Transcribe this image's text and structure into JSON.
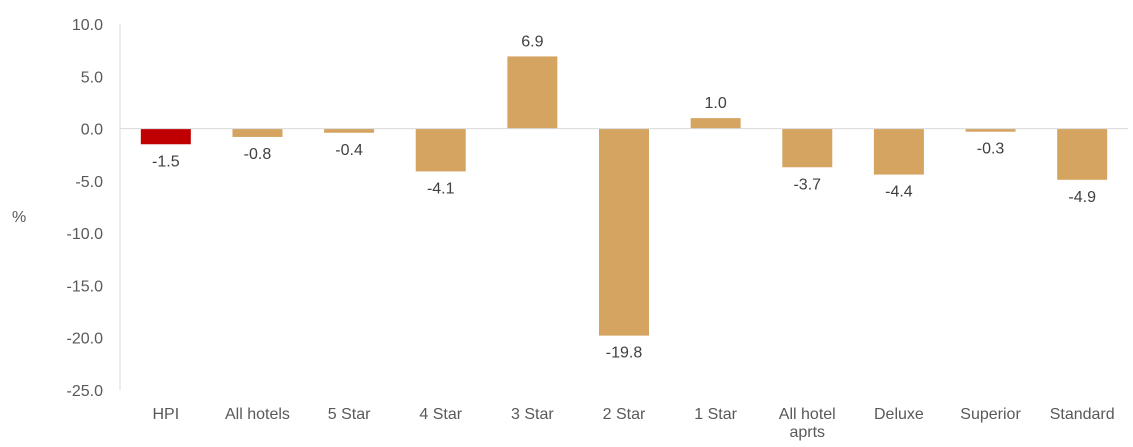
{
  "chart_data": {
    "type": "bar",
    "ylabel": "%",
    "ylim": [
      -25,
      10
    ],
    "yticks": [
      "10.0",
      "5.0",
      "0.0",
      "-5.0",
      "-10.0",
      "-15.0",
      "-20.0",
      "-25.0"
    ],
    "grid": false,
    "legend": "none",
    "categories": [
      "HPI",
      "All hotels",
      "5 Star",
      "4 Star",
      "3 Star",
      "2 Star",
      "1 Star",
      "All hotel aprts",
      "Deluxe",
      "Superior",
      "Standard"
    ],
    "values": [
      -1.5,
      -0.8,
      -0.4,
      -4.1,
      6.9,
      -19.8,
      1.0,
      -3.7,
      -4.4,
      -0.3,
      -4.9
    ],
    "data_labels": [
      "-1.5",
      "-0.8",
      "-0.4",
      "-4.1",
      "6.9",
      "-19.8",
      "1.0",
      "-3.7",
      "-4.4",
      "-0.3",
      "-4.9"
    ],
    "colors": {
      "highlight": "#c00000",
      "bar": "#d6a461",
      "axis": "#d9d9d9"
    },
    "highlight_index": 0
  }
}
